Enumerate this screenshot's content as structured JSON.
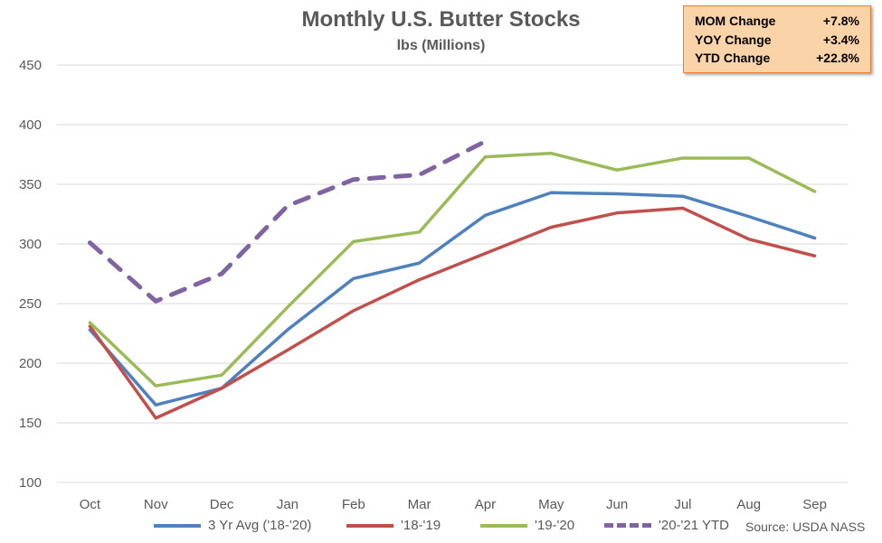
{
  "chart_data": {
    "type": "line",
    "title": "Monthly U.S. Butter Stocks",
    "subtitle": "lbs (Millions)",
    "categories": [
      "Oct",
      "Nov",
      "Dec",
      "Jan",
      "Feb",
      "Mar",
      "Apr",
      "May",
      "Jun",
      "Jul",
      "Aug",
      "Sep"
    ],
    "ylim": [
      100,
      450
    ],
    "yticks": [
      100,
      150,
      200,
      250,
      300,
      350,
      400,
      450
    ],
    "grid": true,
    "legend_position": "bottom",
    "series": [
      {
        "name": "3 Yr Avg ('18-'20)",
        "color": "#4f81bd",
        "style": "solid",
        "values": [
          228,
          165,
          179,
          228,
          271,
          284,
          324,
          343,
          342,
          340,
          323,
          305
        ]
      },
      {
        "name": "'18-'19",
        "color": "#c0504d",
        "style": "solid",
        "values": [
          231,
          154,
          179,
          211,
          244,
          270,
          292,
          314,
          326,
          330,
          304,
          290
        ]
      },
      {
        "name": "'19-'20",
        "color": "#9bbb59",
        "style": "solid",
        "values": [
          234,
          181,
          190,
          247,
          302,
          310,
          373,
          376,
          362,
          372,
          372,
          344
        ]
      },
      {
        "name": "'20-'21 YTD",
        "color": "#8064a2",
        "style": "dashed",
        "values": [
          301,
          252,
          275,
          332,
          354,
          358,
          386,
          null,
          null,
          null,
          null,
          null
        ]
      }
    ]
  },
  "stats": [
    {
      "label": "MOM Change",
      "value": "+7.8%"
    },
    {
      "label": "YOY Change",
      "value": "+3.4%"
    },
    {
      "label": "YTD Change",
      "value": "+22.8%"
    }
  ],
  "source": "Source: USDA NASS"
}
